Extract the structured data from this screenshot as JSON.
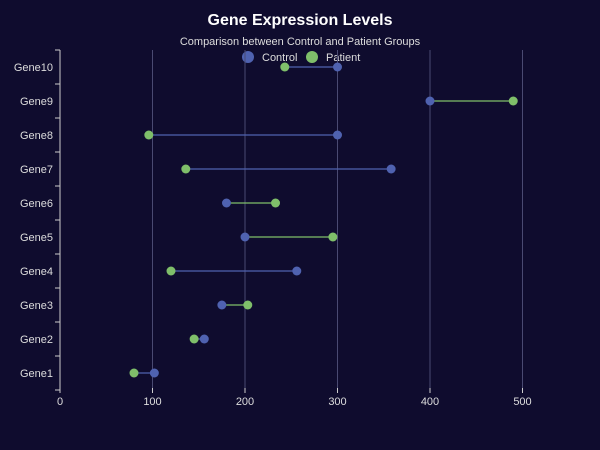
{
  "chart_data": {
    "type": "dumbbell",
    "title": "Gene Expression Levels",
    "subtitle": "Comparison between Control and Patient Groups",
    "xlim": [
      0,
      560
    ],
    "x_ticks": [
      0,
      100,
      200,
      300,
      400,
      500
    ],
    "grid": "vertical",
    "legend_placement": "top-center",
    "categories": [
      "Gene1",
      "Gene2",
      "Gene3",
      "Gene4",
      "Gene5",
      "Gene6",
      "Gene7",
      "Gene8",
      "Gene9",
      "Gene10"
    ],
    "series": [
      {
        "name": "Control",
        "color": "#4f62b0",
        "values": [
          102,
          156,
          175,
          256,
          200,
          180,
          358,
          300,
          400,
          300
        ]
      },
      {
        "name": "Patient",
        "color": "#7fbf6a",
        "values": [
          80,
          145,
          203,
          120,
          295,
          233,
          136,
          96,
          490,
          243
        ]
      }
    ]
  },
  "colors": {
    "background": "#0f0c2e",
    "title": "#ffffff",
    "text": "#dddddd",
    "grid": "#4a4a72",
    "axis": "#cccccc"
  }
}
